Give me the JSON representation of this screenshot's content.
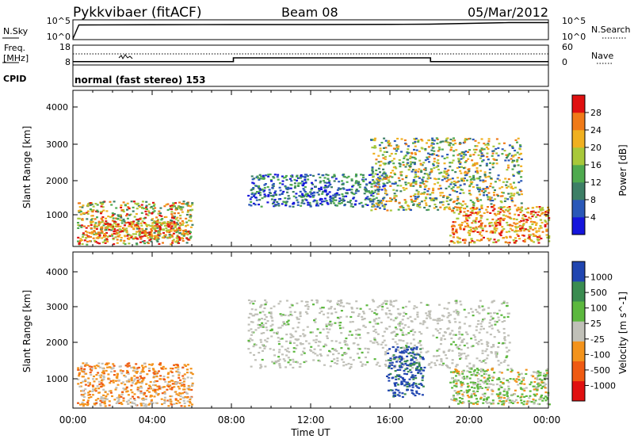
{
  "header": {
    "station": "Pykkvibaer (fitACF)",
    "beam": "Beam 08",
    "date": "05/Mar/2012"
  },
  "noise_panel": {
    "left_label": "N.Sky",
    "right_label": "N.Search",
    "left_ticks": [
      "10^5",
      "10^0"
    ],
    "right_ticks": [
      "10^5",
      "10^0"
    ]
  },
  "freq_panel": {
    "left_label_line1": "Freq.",
    "left_label_line2": "[MHz]",
    "right_label": "Nave",
    "left_ticks": [
      "18",
      "8"
    ],
    "right_ticks": [
      "60",
      "0"
    ]
  },
  "cpid": {
    "label": "CPID",
    "text": "normal (fast stereo) 153"
  },
  "power_panel": {
    "ylabel": "Slant Range [km]",
    "yticks": [
      "4000",
      "3000",
      "2000",
      "1000"
    ],
    "colorbar_label": "Power [dB]",
    "colorbar_ticks": [
      "28",
      "24",
      "20",
      "16",
      "12",
      "8",
      "4"
    ]
  },
  "velocity_panel": {
    "ylabel": "Slant Range [km]",
    "yticks": [
      "4000",
      "3000",
      "2000",
      "1000"
    ],
    "colorbar_label": "Velocity [m s^-1]",
    "colorbar_ticks": [
      "1000",
      "500",
      "100",
      "25",
      "-25",
      "-100",
      "-500",
      "-1000"
    ]
  },
  "time_axis": {
    "xlabel": "Time UT",
    "ticks": [
      "00:00",
      "04:00",
      "08:00",
      "12:00",
      "16:00",
      "20:00",
      "00:00"
    ]
  },
  "colors": {
    "power_scale": [
      "#1515dc",
      "#2a58b8",
      "#3d7f66",
      "#4faa4f",
      "#a8c83a",
      "#f0b020",
      "#f07a18",
      "#e01010"
    ],
    "velocity_scale": [
      "#e01010",
      "#ef5a12",
      "#f3931c",
      "#c0c0b8",
      "#5cb83e",
      "#3a8c50",
      "#2045b0"
    ],
    "ground_scatter": "#c0c0b8"
  },
  "chart_data": {
    "type": "heatmap",
    "x_range_hours": [
      0,
      24
    ],
    "y_range_km": [
      180,
      4500
    ],
    "noise_sky_log": [
      [
        0,
        0.2
      ],
      [
        0.3,
        3.7
      ],
      [
        4,
        3.75
      ],
      [
        8,
        3.8
      ],
      [
        12,
        3.8
      ],
      [
        16,
        3.85
      ],
      [
        18,
        3.9
      ],
      [
        20,
        4.1
      ],
      [
        22,
        4.3
      ],
      [
        24,
        4.3
      ]
    ],
    "frequency_mhz": [
      [
        0,
        9.7
      ],
      [
        8.1,
        9.7
      ],
      [
        8.1,
        11.6
      ],
      [
        18.05,
        11.6
      ],
      [
        18.05,
        9.7
      ],
      [
        24,
        9.7
      ]
    ],
    "nave_level": 32,
    "power_regions": [
      {
        "t0": 0.2,
        "t1": 6.0,
        "r0": 250,
        "r1": 1450,
        "band": "mid-high"
      },
      {
        "t0": 0.5,
        "t1": 5.5,
        "r0": 400,
        "r1": 900,
        "band": "high"
      },
      {
        "t0": 8.8,
        "t1": 15.8,
        "r0": 1300,
        "r1": 2200,
        "band": "low-mid"
      },
      {
        "t0": 15.0,
        "t1": 22.6,
        "r0": 1200,
        "r1": 3200,
        "band": "mid"
      },
      {
        "t0": 19.0,
        "t1": 24.0,
        "r0": 300,
        "r1": 1300,
        "band": "high"
      }
    ],
    "velocity_regions": [
      {
        "t0": 0.2,
        "t1": 6.0,
        "r0": 250,
        "r1": 1450,
        "value": "-100"
      },
      {
        "t0": 8.8,
        "t1": 22.0,
        "r0": 1300,
        "r1": 3200,
        "value": "ground"
      },
      {
        "t0": 15.8,
        "t1": 17.7,
        "r0": 500,
        "r1": 1900,
        "value": "500"
      },
      {
        "t0": 19.0,
        "t1": 24.0,
        "r0": 300,
        "r1": 1300,
        "value": "100"
      }
    ]
  }
}
